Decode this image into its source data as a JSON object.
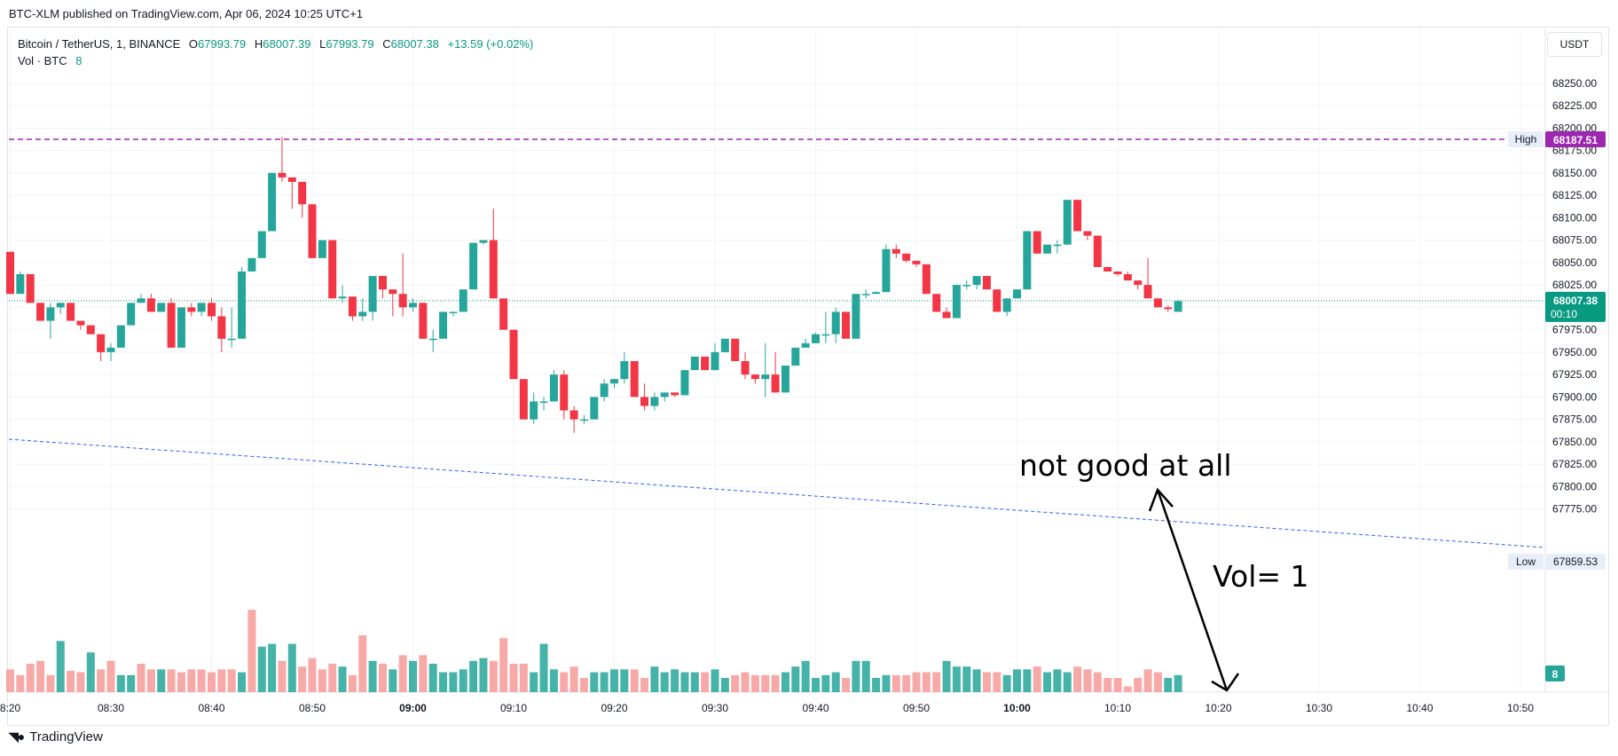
{
  "publish_line": "BTC-XLM published on TradingView.com, Apr 06, 2024 10:25 UTC+1",
  "legend": {
    "symbol": "Bitcoin / TetherUS, 1, BINANCE",
    "o_key": "O",
    "o": "67993.79",
    "h_key": "H",
    "h": "68007.39",
    "l_key": "L",
    "l": "67993.79",
    "c_key": "C",
    "c": "68007.38",
    "change": "+13.59 (+0.02%)",
    "vol_label": "Vol · BTC",
    "vol_value": "8"
  },
  "currency_button": "USDT",
  "branding": "TradingView",
  "annotations": {
    "note_main": "not good at all",
    "note_vol": "Vol= 1"
  },
  "colors": {
    "up": "#26a69a",
    "down": "#f23645",
    "vol_up": "#26a69a",
    "vol_down": "#f7a9a7",
    "high_line": "#9c27b0",
    "trend_line": "#2962ff",
    "last_price": "#089981"
  },
  "chart_data": {
    "type": "candlestick",
    "title": "Bitcoin / TetherUS, 1, BINANCE",
    "y_axis": {
      "ylim": [
        67755,
        68275
      ],
      "ticks": [
        "68250.00",
        "68225.00",
        "68200.00",
        "68175.00",
        "68150.00",
        "68125.00",
        "68100.00",
        "68075.00",
        "68050.00",
        "68025.00",
        "68000.00",
        "67975.00",
        "67950.00",
        "67925.00",
        "67900.00",
        "67875.00",
        "67850.00",
        "67825.00",
        "67800.00",
        "67775.00"
      ]
    },
    "x_axis": {
      "ticks": [
        {
          "label": "08:20",
          "minute": 0,
          "bold": false,
          "display": "8:20"
        },
        {
          "label": "08:30",
          "minute": 10,
          "bold": false
        },
        {
          "label": "08:40",
          "minute": 20,
          "bold": false
        },
        {
          "label": "08:50",
          "minute": 30,
          "bold": false
        },
        {
          "label": "09:00",
          "minute": 40,
          "bold": true
        },
        {
          "label": "09:10",
          "minute": 50,
          "bold": false
        },
        {
          "label": "09:20",
          "minute": 60,
          "bold": false
        },
        {
          "label": "09:30",
          "minute": 70,
          "bold": false
        },
        {
          "label": "09:40",
          "minute": 80,
          "bold": false
        },
        {
          "label": "09:50",
          "minute": 90,
          "bold": false
        },
        {
          "label": "10:00",
          "minute": 100,
          "bold": true
        },
        {
          "label": "10:10",
          "minute": 110,
          "bold": false
        },
        {
          "label": "10:20",
          "minute": 120,
          "bold": false
        },
        {
          "label": "10:30",
          "minute": 130,
          "bold": false
        },
        {
          "label": "10:40",
          "minute": 140,
          "bold": false
        },
        {
          "label": "10:50",
          "minute": 150,
          "bold": false,
          "display": "10:50"
        }
      ]
    },
    "start_time": "08:20",
    "ohlc": [
      [
        68062,
        68062,
        68015,
        68015
      ],
      [
        68015,
        68040,
        68015,
        68037
      ],
      [
        68037,
        68037,
        68005,
        68005
      ],
      [
        68005,
        68005,
        67985,
        67985
      ],
      [
        67985,
        68005,
        67965,
        68000
      ],
      [
        68000,
        68005,
        67993,
        68005
      ],
      [
        68005,
        68005,
        67985,
        67985
      ],
      [
        67985,
        67985,
        67975,
        67980
      ],
      [
        67980,
        67980,
        67970,
        67970
      ],
      [
        67970,
        67970,
        67940,
        67950
      ],
      [
        67950,
        67960,
        67940,
        67955
      ],
      [
        67955,
        67980,
        67955,
        67980
      ],
      [
        67980,
        68005,
        67980,
        68005
      ],
      [
        68005,
        68015,
        68005,
        68010
      ],
      [
        68010,
        68015,
        67995,
        67995
      ],
      [
        67995,
        68005,
        67995,
        68005
      ],
      [
        68005,
        68010,
        67955,
        67955
      ],
      [
        67955,
        68000,
        67955,
        68000
      ],
      [
        68000,
        68005,
        67990,
        67995
      ],
      [
        67995,
        68005,
        67990,
        68005
      ],
      [
        68005,
        68010,
        67985,
        67990
      ],
      [
        67990,
        68000,
        67950,
        67965
      ],
      [
        67965,
        68000,
        67955,
        67965
      ],
      [
        67965,
        68045,
        67965,
        68040
      ],
      [
        68040,
        68055,
        68040,
        68055
      ],
      [
        68055,
        68085,
        68055,
        68085
      ],
      [
        68085,
        68150,
        68085,
        68150
      ],
      [
        68150,
        68190,
        68140,
        68145
      ],
      [
        68145,
        68145,
        68110,
        68140
      ],
      [
        68140,
        68140,
        68100,
        68115
      ],
      [
        68115,
        68115,
        68055,
        68055
      ],
      [
        68055,
        68075,
        68055,
        68075
      ],
      [
        68075,
        68075,
        68010,
        68010
      ],
      [
        68010,
        68025,
        68005,
        68012
      ],
      [
        68012,
        68012,
        67985,
        67990
      ],
      [
        67990,
        68010,
        67985,
        67995
      ],
      [
        67995,
        68035,
        67985,
        68035
      ],
      [
        68035,
        68035,
        68010,
        68020
      ],
      [
        68020,
        68020,
        67990,
        68015
      ],
      [
        68015,
        68060,
        67990,
        68000
      ],
      [
        68000,
        68010,
        67995,
        68005
      ],
      [
        68005,
        68005,
        67965,
        67965
      ],
      [
        67965,
        67975,
        67950,
        67965
      ],
      [
        67965,
        67995,
        67965,
        67995
      ],
      [
        67995,
        67995,
        67990,
        67995
      ],
      [
        67995,
        68020,
        67995,
        68020
      ],
      [
        68020,
        68072,
        68020,
        68072
      ],
      [
        68072,
        68075,
        68070,
        68075
      ],
      [
        68075,
        68110,
        68010,
        68010
      ],
      [
        68010,
        68010,
        67975,
        67975
      ],
      [
        67975,
        67975,
        67920,
        67920
      ],
      [
        67920,
        67920,
        67875,
        67875
      ],
      [
        67875,
        67905,
        67870,
        67895
      ],
      [
        67895,
        67900,
        67885,
        67895
      ],
      [
        67895,
        67930,
        67895,
        67925
      ],
      [
        67925,
        67930,
        67875,
        67885
      ],
      [
        67885,
        67890,
        67860,
        67875
      ],
      [
        67875,
        67880,
        67870,
        67875
      ],
      [
        67875,
        67900,
        67875,
        67900
      ],
      [
        67900,
        67920,
        67895,
        67915
      ],
      [
        67915,
        67920,
        67910,
        67920
      ],
      [
        67920,
        67950,
        67915,
        67940
      ],
      [
        67940,
        67940,
        67900,
        67900
      ],
      [
        67900,
        67915,
        67885,
        67890
      ],
      [
        67890,
        67905,
        67885,
        67900
      ],
      [
        67900,
        67905,
        67895,
        67905
      ],
      [
        67905,
        67905,
        67900,
        67902
      ],
      [
        67902,
        67930,
        67902,
        67930
      ],
      [
        67930,
        67945,
        67930,
        67945
      ],
      [
        67945,
        67945,
        67930,
        67930
      ],
      [
        67930,
        67960,
        67930,
        67950
      ],
      [
        67950,
        67965,
        67950,
        67965
      ],
      [
        67965,
        67965,
        67940,
        67940
      ],
      [
        67940,
        67950,
        67920,
        67925
      ],
      [
        67925,
        67925,
        67915,
        67920
      ],
      [
        67920,
        67960,
        67900,
        67925
      ],
      [
        67925,
        67950,
        67905,
        67905
      ],
      [
        67905,
        67935,
        67905,
        67935
      ],
      [
        67935,
        67955,
        67935,
        67955
      ],
      [
        67955,
        67965,
        67955,
        67960
      ],
      [
        67960,
        67972,
        67960,
        67970
      ],
      [
        67970,
        67995,
        67960,
        67970
      ],
      [
        67970,
        68000,
        67960,
        67995
      ],
      [
        67995,
        67995,
        67965,
        67965
      ],
      [
        67965,
        68015,
        67965,
        68015
      ],
      [
        68015,
        68020,
        68010,
        68015
      ],
      [
        68015,
        68018,
        68015,
        68017
      ],
      [
        68017,
        68070,
        68017,
        68065
      ],
      [
        68065,
        68070,
        68055,
        68060
      ],
      [
        68060,
        68060,
        68050,
        68052
      ],
      [
        68052,
        68052,
        68045,
        68048
      ],
      [
        68048,
        68048,
        68015,
        68015
      ],
      [
        68015,
        68015,
        67995,
        67995
      ],
      [
        67995,
        68000,
        67988,
        67988
      ],
      [
        67988,
        68025,
        67988,
        68025
      ],
      [
        68025,
        68030,
        68020,
        68025
      ],
      [
        68025,
        68035,
        68020,
        68035
      ],
      [
        68035,
        68035,
        68020,
        68020
      ],
      [
        68020,
        68020,
        67995,
        67995
      ],
      [
        67995,
        68010,
        67990,
        68010
      ],
      [
        68010,
        68020,
        68010,
        68020
      ],
      [
        68020,
        68085,
        68020,
        68085
      ],
      [
        68085,
        68085,
        68060,
        68060
      ],
      [
        68060,
        68070,
        68060,
        68070
      ],
      [
        68070,
        68075,
        68060,
        68070
      ],
      [
        68070,
        68120,
        68070,
        68120
      ],
      [
        68120,
        68120,
        68085,
        68085
      ],
      [
        68085,
        68085,
        68075,
        68080
      ],
      [
        68080,
        68080,
        68045,
        68045
      ],
      [
        68045,
        68045,
        68040,
        68040
      ],
      [
        68040,
        68040,
        68035,
        68037
      ],
      [
        68037,
        68040,
        68030,
        68030
      ],
      [
        68030,
        68030,
        68020,
        68025
      ],
      [
        68025,
        68055,
        68010,
        68010
      ],
      [
        68010,
        68010,
        68000,
        68000
      ],
      [
        68000,
        68002,
        67995,
        67998
      ],
      [
        67995,
        68008,
        67995,
        68007
      ]
    ],
    "volume": [
      16,
      12,
      20,
      22,
      12,
      36,
      15,
      14,
      28,
      16,
      22,
      12,
      12,
      20,
      16,
      16,
      16,
      14,
      16,
      16,
      14,
      16,
      16,
      14,
      58,
      32,
      34,
      22,
      34,
      18,
      24,
      16,
      20,
      18,
      12,
      40,
      22,
      20,
      16,
      26,
      22,
      26,
      20,
      14,
      14,
      16,
      22,
      24,
      22,
      38,
      20,
      20,
      14,
      34,
      16,
      14,
      18,
      10,
      14,
      14,
      16,
      16,
      16,
      10,
      18,
      14,
      16,
      14,
      14,
      14,
      16,
      10,
      12,
      14,
      12,
      12,
      12,
      14,
      18,
      22,
      10,
      12,
      14,
      10,
      22,
      22,
      10,
      12,
      12,
      12,
      14,
      14,
      14,
      22,
      18,
      18,
      16,
      14,
      14,
      12,
      16,
      16,
      18,
      14,
      16,
      14,
      18,
      16,
      14,
      10,
      10,
      4,
      10,
      16,
      14,
      10,
      12
    ],
    "volume_up": [
      0,
      0,
      0,
      0,
      0,
      1,
      0,
      0,
      1,
      0,
      0,
      1,
      1,
      0,
      0,
      1,
      0,
      0,
      0,
      0,
      0,
      0,
      0,
      1,
      0,
      1,
      1,
      0,
      1,
      0,
      0,
      0,
      0,
      1,
      0,
      0,
      1,
      0,
      1,
      0,
      1,
      0,
      1,
      1,
      1,
      1,
      1,
      1,
      0,
      0,
      0,
      0,
      1,
      1,
      1,
      0,
      0,
      0,
      1,
      1,
      1,
      1,
      0,
      0,
      1,
      1,
      1,
      1,
      1,
      0,
      1,
      1,
      0,
      0,
      0,
      0,
      0,
      1,
      1,
      1,
      1,
      1,
      1,
      0,
      1,
      1,
      1,
      1,
      0,
      0,
      0,
      0,
      0,
      1,
      1,
      1,
      1,
      0,
      0,
      1,
      1,
      1,
      0,
      1,
      1,
      1,
      0,
      0,
      0,
      0,
      0,
      0,
      0,
      0,
      0,
      1,
      1
    ],
    "high_label": "High",
    "high_value": "68187.51",
    "low_label": "Low",
    "low_value": "67859.53",
    "last_price": "68007.38",
    "countdown": "00:10",
    "volume_badge": "8"
  }
}
